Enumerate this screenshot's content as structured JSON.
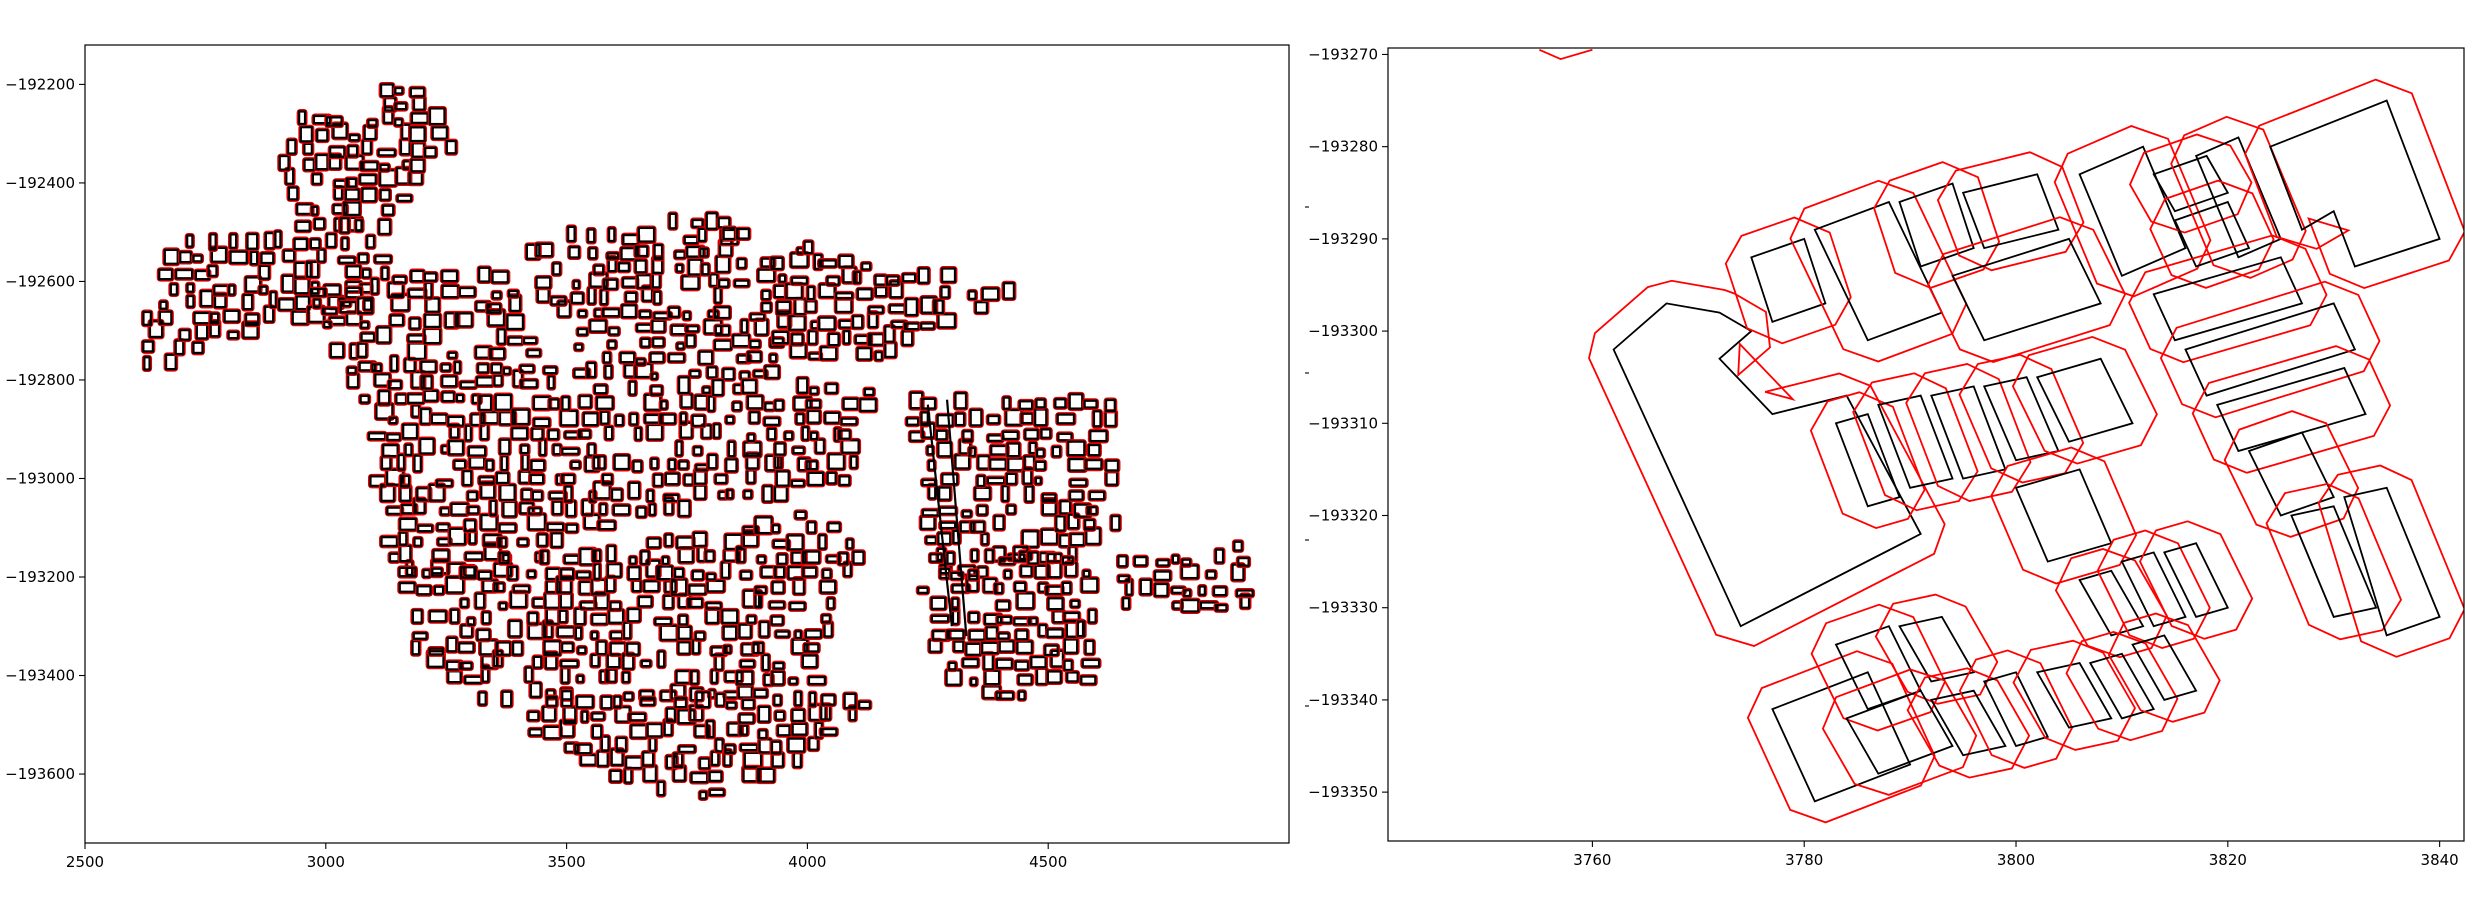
{
  "colors": {
    "building_outline": "#000000",
    "buffer_outline": "#ff0000",
    "background": "#ffffff"
  },
  "chart_data": [
    {
      "type": "map",
      "panel": "overview",
      "title": "",
      "xlabel": "",
      "ylabel": "",
      "grid": false,
      "xlim": [
        2500,
        5000
      ],
      "ylim": [
        -193740,
        -192120
      ],
      "xticks": [
        2500,
        3000,
        3500,
        4000,
        4500
      ],
      "yticks": [
        -192200,
        -192400,
        -192600,
        -192800,
        -193000,
        -193200,
        -193400,
        -193600
      ],
      "xtick_labels": [
        "2500",
        "3000",
        "3500",
        "4000",
        "4500"
      ],
      "ytick_labels": [
        "−192200",
        "−192400",
        "−192600",
        "−192800",
        "−193000",
        "−193200",
        "−193400",
        "−193600"
      ],
      "series": [
        {
          "role": "building footprints",
          "color": "#000000"
        },
        {
          "role": "buffer outlines",
          "color": "#ff0000"
        }
      ]
    },
    {
      "type": "map",
      "panel": "zoom",
      "title": "",
      "xlabel": "",
      "ylabel": "",
      "grid": false,
      "xlim": [
        3740.7,
        3842.3
      ],
      "ylim": [
        -193355.3,
        -193269.3
      ],
      "xticks": [
        3760,
        3780,
        3800,
        3820,
        3840
      ],
      "yticks": [
        -193270,
        -193280,
        -193290,
        -193300,
        -193310,
        -193320,
        -193330,
        -193340,
        -193350
      ],
      "xtick_labels": [
        "3760",
        "3780",
        "3800",
        "3820",
        "3840"
      ],
      "ytick_labels": [
        "−193270",
        "−193280",
        "−193290",
        "−193300",
        "−193310",
        "−193320",
        "−193330",
        "−193340",
        "−193350"
      ],
      "buildings": [
        {
          "name": "L-shaped block",
          "points": [
            [
              3762,
              -193302
            ],
            [
              3767,
              -193297
            ],
            [
              3772,
              -193298
            ],
            [
              3775,
              -193300
            ],
            [
              3772,
              -193303
            ],
            [
              3777,
              -193309
            ],
            [
              3784,
              -193307
            ],
            [
              3791,
              -193322
            ],
            [
              3774,
              -193332
            ]
          ]
        },
        {
          "name": "b1",
          "points": [
            [
              3775,
              -193292
            ],
            [
              3780,
              -193290
            ],
            [
              3782,
              -193297
            ],
            [
              3777,
              -193299
            ]
          ]
        },
        {
          "name": "b2",
          "points": [
            [
              3781,
              -193289
            ],
            [
              3788,
              -193286
            ],
            [
              3793,
              -193298
            ],
            [
              3786,
              -193301
            ]
          ]
        },
        {
          "name": "b3",
          "points": [
            [
              3789,
              -193286
            ],
            [
              3794,
              -193284
            ],
            [
              3796,
              -193291
            ],
            [
              3791,
              -193293
            ]
          ]
        },
        {
          "name": "b4",
          "points": [
            [
              3795,
              -193285
            ],
            [
              3802,
              -193283
            ],
            [
              3804,
              -193289
            ],
            [
              3797,
              -193291
            ]
          ]
        },
        {
          "name": "b5",
          "points": [
            [
              3794,
              -193294
            ],
            [
              3805,
              -193290
            ],
            [
              3808,
              -193297
            ],
            [
              3797,
              -193301
            ]
          ]
        },
        {
          "name": "b6",
          "points": [
            [
              3806,
              -193283
            ],
            [
              3812,
              -193280
            ],
            [
              3816,
              -193291
            ],
            [
              3810,
              -193294
            ]
          ]
        },
        {
          "name": "b7",
          "points": [
            [
              3813,
              -193283
            ],
            [
              3818,
              -193281
            ],
            [
              3820,
              -193285
            ],
            [
              3815,
              -193287
            ]
          ]
        },
        {
          "name": "b8",
          "points": [
            [
              3815,
              -193288
            ],
            [
              3820,
              -193286
            ],
            [
              3822,
              -193291
            ],
            [
              3817,
              -193293
            ]
          ]
        },
        {
          "name": "b9",
          "points": [
            [
              3817,
              -193281
            ],
            [
              3821,
              -193279
            ],
            [
              3825,
              -193290
            ],
            [
              3821,
              -193292
            ]
          ]
        },
        {
          "name": "b10",
          "points": [
            [
              3824,
              -193280
            ],
            [
              3835,
              -193275
            ],
            [
              3840,
              -193290
            ],
            [
              3832,
              -193293
            ],
            [
              3830,
              -193287
            ],
            [
              3827,
              -193289
            ]
          ]
        },
        {
          "name": "b11",
          "points": [
            [
              3813,
              -193296
            ],
            [
              3825,
              -193292
            ],
            [
              3827,
              -193297
            ],
            [
              3815,
              -193301
            ]
          ]
        },
        {
          "name": "b12",
          "points": [
            [
              3816,
              -193302
            ],
            [
              3830,
              -193297
            ],
            [
              3832,
              -193302
            ],
            [
              3818,
              -193307
            ]
          ]
        },
        {
          "name": "b13",
          "points": [
            [
              3819,
              -193308
            ],
            [
              3831,
              -193304
            ],
            [
              3833,
              -193309
            ],
            [
              3821,
              -193313
            ]
          ]
        },
        {
          "name": "b14",
          "points": [
            [
              3783,
              -193310
            ],
            [
              3786,
              -193309
            ],
            [
              3789,
              -193318
            ],
            [
              3786,
              -193319
            ]
          ]
        },
        {
          "name": "b15",
          "points": [
            [
              3787,
              -193308
            ],
            [
              3791,
              -193307
            ],
            [
              3794,
              -193316
            ],
            [
              3790,
              -193317
            ]
          ]
        },
        {
          "name": "b16",
          "points": [
            [
              3792,
              -193307
            ],
            [
              3796,
              -193306
            ],
            [
              3799,
              -193315
            ],
            [
              3795,
              -193316
            ]
          ]
        },
        {
          "name": "b17",
          "points": [
            [
              3797,
              -193306
            ],
            [
              3801,
              -193305
            ],
            [
              3804,
              -193313
            ],
            [
              3800,
              -193314
            ]
          ]
        },
        {
          "name": "b18",
          "points": [
            [
              3802,
              -193305
            ],
            [
              3808,
              -193303
            ],
            [
              3811,
              -193310
            ],
            [
              3805,
              -193312
            ]
          ]
        },
        {
          "name": "b19",
          "points": [
            [
              3800,
              -193317
            ],
            [
              3806,
              -193315
            ],
            [
              3809,
              -193323
            ],
            [
              3803,
              -193325
            ]
          ]
        },
        {
          "name": "b20",
          "points": [
            [
              3822,
              -193313
            ],
            [
              3827,
              -193311
            ],
            [
              3830,
              -193318
            ],
            [
              3825,
              -193320
            ]
          ]
        },
        {
          "name": "b21",
          "points": [
            [
              3826,
              -193320
            ],
            [
              3830,
              -193319
            ],
            [
              3834,
              -193330
            ],
            [
              3830,
              -193331
            ]
          ]
        },
        {
          "name": "b22",
          "points": [
            [
              3831,
              -193318
            ],
            [
              3835,
              -193317
            ],
            [
              3840,
              -193331
            ],
            [
              3835,
              -193333
            ]
          ]
        },
        {
          "name": "b23",
          "points": [
            [
              3806,
              -193327
            ],
            [
              3809,
              -193326
            ],
            [
              3812,
              -193332
            ],
            [
              3809,
              -193333
            ]
          ]
        },
        {
          "name": "b24",
          "points": [
            [
              3810,
              -193325
            ],
            [
              3813,
              -193324
            ],
            [
              3816,
              -193331
            ],
            [
              3813,
              -193332
            ]
          ]
        },
        {
          "name": "b25",
          "points": [
            [
              3814,
              -193324
            ],
            [
              3817,
              -193323
            ],
            [
              3820,
              -193330
            ],
            [
              3817,
              -193331
            ]
          ]
        },
        {
          "name": "b26",
          "points": [
            [
              3777,
              -193341
            ],
            [
              3786,
              -193337
            ],
            [
              3790,
              -193347
            ],
            [
              3781,
              -193351
            ]
          ]
        },
        {
          "name": "b27",
          "points": [
            [
              3783,
              -193334
            ],
            [
              3788,
              -193332
            ],
            [
              3791,
              -193339
            ],
            [
              3786,
              -193341
            ]
          ]
        },
        {
          "name": "b28",
          "points": [
            [
              3789,
              -193332
            ],
            [
              3793,
              -193331
            ],
            [
              3796,
              -193337
            ],
            [
              3792,
              -193338
            ]
          ]
        },
        {
          "name": "b29",
          "points": [
            [
              3784,
              -193342
            ],
            [
              3791,
              -193339
            ],
            [
              3794,
              -193345
            ],
            [
              3787,
              -193348
            ]
          ]
        },
        {
          "name": "b30",
          "points": [
            [
              3792,
              -193340
            ],
            [
              3796,
              -193339
            ],
            [
              3799,
              -193345
            ],
            [
              3795,
              -193346
            ]
          ]
        },
        {
          "name": "b31",
          "points": [
            [
              3797,
              -193338
            ],
            [
              3800,
              -193337
            ],
            [
              3803,
              -193344
            ],
            [
              3800,
              -193345
            ]
          ]
        },
        {
          "name": "b32",
          "points": [
            [
              3802,
              -193337
            ],
            [
              3806,
              -193336
            ],
            [
              3809,
              -193342
            ],
            [
              3805,
              -193343
            ]
          ]
        },
        {
          "name": "b33",
          "points": [
            [
              3807,
              -193336
            ],
            [
              3810,
              -193335
            ],
            [
              3813,
              -193341
            ],
            [
              3810,
              -193342
            ]
          ]
        },
        {
          "name": "b34",
          "points": [
            [
              3811,
              -193334
            ],
            [
              3814,
              -193333
            ],
            [
              3817,
              -193339
            ],
            [
              3814,
              -193340
            ]
          ]
        },
        {
          "name": "top edge fragment",
          "points": [
            [
              3755,
              -193269.5
            ],
            [
              3757,
              -193270.5
            ],
            [
              3760,
              -193269.5
            ]
          ],
          "open": true
        }
      ],
      "buffer_distance": 2.5
    }
  ]
}
